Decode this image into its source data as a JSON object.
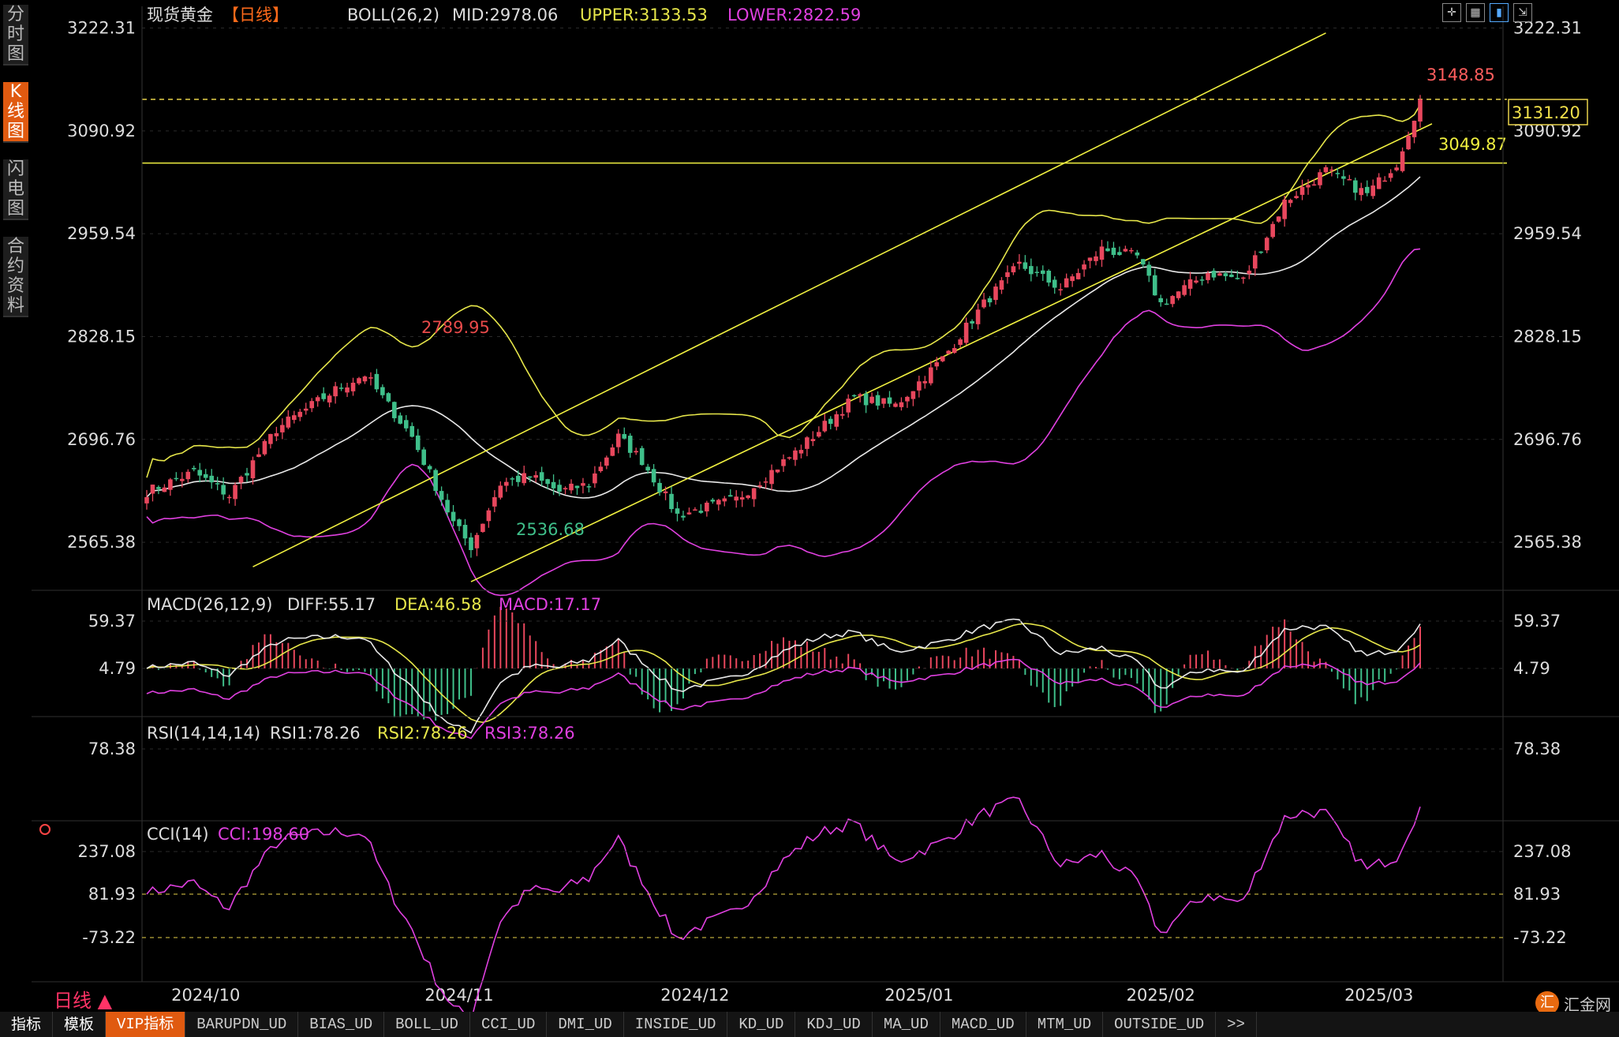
{
  "sidebar": {
    "tabs": [
      {
        "label": "分\n时\n图"
      },
      {
        "label": "K\n线\n图",
        "active": true
      },
      {
        "label": "闪\n电\n图"
      },
      {
        "label": "合\n约\n资\n料"
      }
    ]
  },
  "toolbar": {
    "buttons": [
      "crosshair-icon",
      "chart-grid-icon",
      "candle-mode-icon",
      "expand-icon"
    ]
  },
  "colors": {
    "up": "#e8475d",
    "down": "#3fbf8a",
    "boll_upper": "#e6e64a",
    "boll_mid": "#e8e8e8",
    "boll_lower": "#e040e0",
    "dea": "#e6e64a",
    "diff": "#e8e8e8",
    "macd": "#e040e0"
  },
  "chart_data": [
    {
      "type": "candlestick",
      "title": "现货黄金",
      "period_tag": "【日线】",
      "indicator": "BOLL(26,2)",
      "readouts": {
        "mid": "MID:2978.06",
        "upper": "UPPER:3133.53",
        "lower": "LOWER:2822.59"
      },
      "y_ticks": [
        "3222.31",
        "3090.92",
        "2959.54",
        "2828.15",
        "2696.76",
        "2565.38"
      ],
      "ylim": [
        2510,
        3240
      ],
      "x_ticks": [
        "2024/10",
        "2024/11",
        "2024/12",
        "2025/01",
        "2025/02",
        "2025/03"
      ],
      "annotations": {
        "high": "3148.85",
        "low": "2536.68",
        "prev_high": "2789.95",
        "level": "3049.87",
        "last": "3131.20"
      },
      "key_points": [
        {
          "day": 0,
          "close": 2630
        },
        {
          "day": 8,
          "close": 2655
        },
        {
          "day": 14,
          "close": 2625
        },
        {
          "day": 22,
          "close": 2710
        },
        {
          "day": 32,
          "close": 2760
        },
        {
          "day": 37,
          "close": 2780
        },
        {
          "day": 45,
          "close": 2700
        },
        {
          "day": 52,
          "close": 2590
        },
        {
          "day": 55,
          "close": 2560
        },
        {
          "day": 60,
          "close": 2640
        },
        {
          "day": 65,
          "close": 2650
        },
        {
          "day": 70,
          "close": 2630
        },
        {
          "day": 75,
          "close": 2640
        },
        {
          "day": 80,
          "close": 2700
        },
        {
          "day": 84,
          "close": 2670
        },
        {
          "day": 90,
          "close": 2600
        },
        {
          "day": 100,
          "close": 2620
        },
        {
          "day": 110,
          "close": 2680
        },
        {
          "day": 120,
          "close": 2750
        },
        {
          "day": 127,
          "close": 2740
        },
        {
          "day": 135,
          "close": 2800
        },
        {
          "day": 142,
          "close": 2870
        },
        {
          "day": 148,
          "close": 2920
        },
        {
          "day": 155,
          "close": 2890
        },
        {
          "day": 162,
          "close": 2940
        },
        {
          "day": 168,
          "close": 2930
        },
        {
          "day": 172,
          "close": 2870
        },
        {
          "day": 180,
          "close": 2910
        },
        {
          "day": 186,
          "close": 2900
        },
        {
          "day": 193,
          "close": 3000
        },
        {
          "day": 200,
          "close": 3040
        },
        {
          "day": 207,
          "close": 3010
        },
        {
          "day": 212,
          "close": 3050
        },
        {
          "day": 216,
          "close": 3131
        }
      ],
      "lines": [
        {
          "name": "channel-upper",
          "from": [
            18,
            2534
          ],
          "to": [
            200,
            3216
          ]
        },
        {
          "name": "channel-lower",
          "from": [
            55,
            2515
          ],
          "to": [
            218,
            3100
          ]
        },
        {
          "name": "level",
          "y": 3049.87
        },
        {
          "name": "high-ref",
          "y": 3131.2
        }
      ]
    },
    {
      "type": "line",
      "title": "MACD(26,12,9)",
      "readouts": {
        "diff": "DIFF:55.17",
        "dea": "DEA:46.58",
        "macd": "MACD:17.17"
      },
      "y_ticks": [
        "59.37",
        "4.79"
      ]
    },
    {
      "type": "line",
      "title": "RSI(14,14,14)",
      "readouts": {
        "rsi1": "RSI1:78.26",
        "rsi2": "RSI2:78.26",
        "rsi3": "RSI3:78.26"
      },
      "y_ticks": [
        "78.38"
      ]
    },
    {
      "type": "line",
      "title": "CCI(14)",
      "readouts": {
        "cci": "CCI:198.60"
      },
      "y_ticks": [
        "237.08",
        "81.93",
        "-73.22"
      ]
    }
  ],
  "period": "日线 ▲",
  "bottom_tabs": [
    {
      "label": "指标",
      "main": true
    },
    {
      "label": "模板",
      "main": true
    },
    {
      "label": "VIP指标",
      "active": true
    },
    {
      "label": "BARUPDN_UD"
    },
    {
      "label": "BIAS_UD"
    },
    {
      "label": "BOLL_UD"
    },
    {
      "label": "CCI_UD"
    },
    {
      "label": "DMI_UD"
    },
    {
      "label": "INSIDE_UD"
    },
    {
      "label": "KD_UD"
    },
    {
      "label": "KDJ_UD"
    },
    {
      "label": "MA_UD"
    },
    {
      "label": "MACD_UD"
    },
    {
      "label": "MTM_UD"
    },
    {
      "label": "OUTSIDE_UD"
    },
    {
      "label": ">>"
    }
  ],
  "logo": {
    "text": "汇金网",
    "mark": "汇"
  }
}
